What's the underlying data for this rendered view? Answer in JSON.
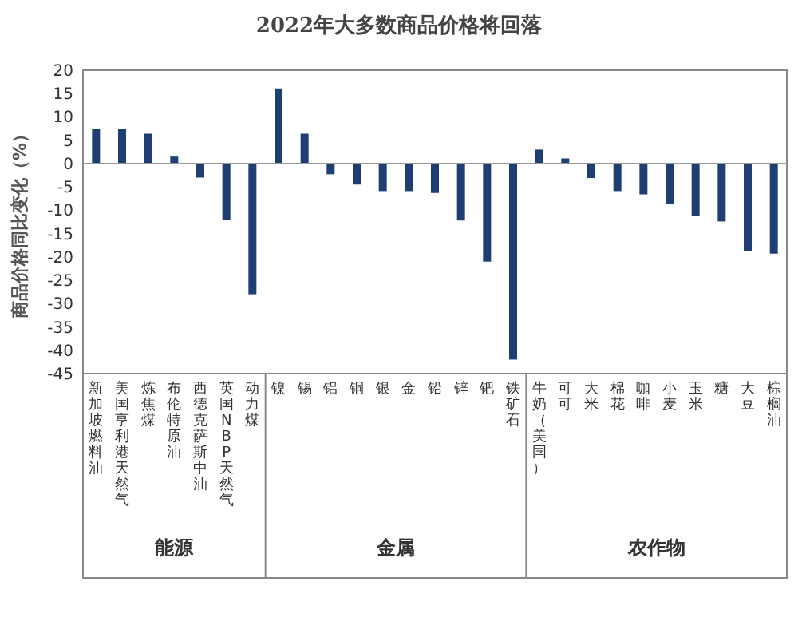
{
  "chart_data": {
    "type": "bar",
    "title": "2022年大多数商品价格将回落",
    "ylabel": "商品价格同比变化（%）",
    "categories": [
      "新加坡燃料油",
      "美国亨利港天然气",
      "炼焦煤",
      "布伦特原油",
      "西德克萨斯中油",
      "英国NBP天然气",
      "动力煤",
      "镍",
      "锡",
      "铝",
      "铜",
      "银",
      "金",
      "铅",
      "锌",
      "钯",
      "铁矿石",
      "牛奶（美国）",
      "可可",
      "大米",
      "棉花",
      "咖啡",
      "小麦",
      "玉米",
      "糖",
      "大豆",
      "棕榈油"
    ],
    "values": [
      7.4,
      7.4,
      6.4,
      1.5,
      -3,
      -12,
      -28,
      16.1,
      6.4,
      -2.3,
      -4.5,
      -5.9,
      -5.9,
      -6.3,
      -12.2,
      -21,
      -42,
      3,
      1.1,
      -3.1,
      -5.9,
      -6.6,
      -8.7,
      -11.2,
      -12.4,
      -18.8,
      -19.3
    ],
    "color": "#1f3f73",
    "ylim": [
      -45,
      20
    ],
    "yticks": [
      -45,
      -40,
      -35,
      -30,
      -25,
      -20,
      -15,
      -10,
      -5,
      0,
      5,
      10,
      15,
      20
    ],
    "annotations": [
      "能源",
      "金属",
      "农作物"
    ]
  }
}
